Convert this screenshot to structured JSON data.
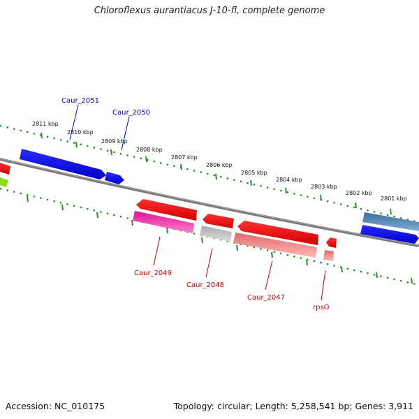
{
  "title": "Chloroflexus aurantiacus J-10-fl, complete genome",
  "footer": {
    "accession": "Accession: NC_010175",
    "topology": "Topology: circular; Length: 5,258,541 bp; Genes: 3,911"
  },
  "colors": {
    "backbone": "#7a7a7a",
    "tick": "#2e8b2e",
    "forward_label": "#0000cc",
    "reverse_label": "#cc0000"
  },
  "kbp_labels": [
    "2811 kbp",
    "2810 kbp",
    "2809 kbp",
    "2808 kbp",
    "2807 kbp",
    "2806 kbp",
    "2805 kbp",
    "2804 kbp",
    "2803 kbp",
    "2802 kbp",
    "2801 kbp"
  ],
  "gene_labels": [
    "Caur_2051",
    "Caur_2050",
    "Caur_2049",
    "Caur_2048",
    "Caur_2047",
    "rpsO"
  ]
}
